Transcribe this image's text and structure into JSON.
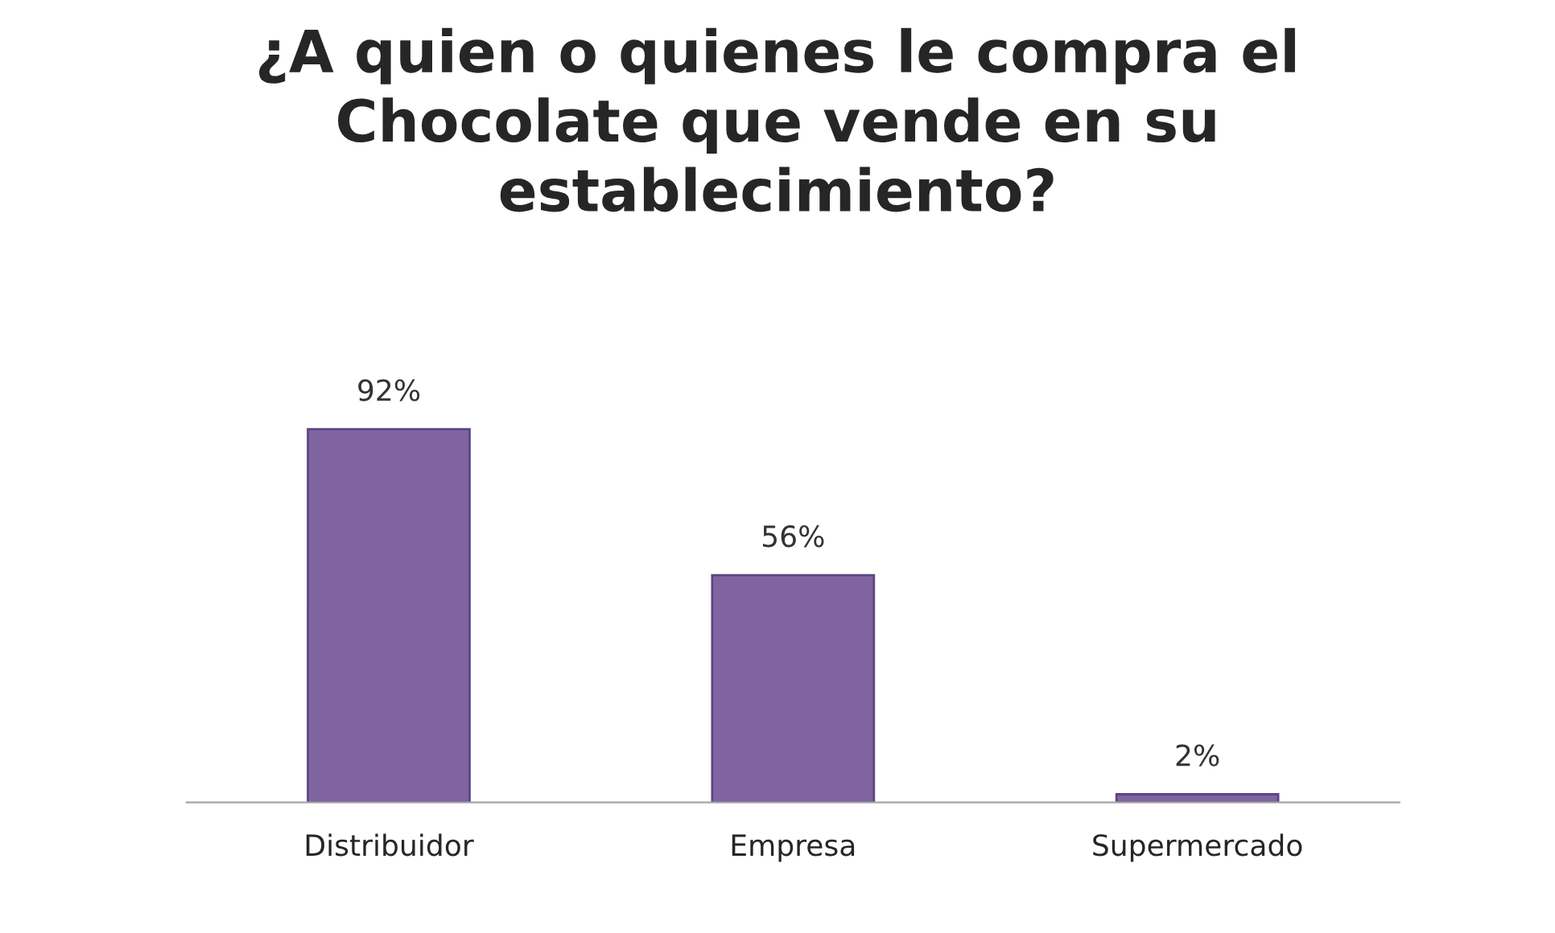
{
  "chart_data": {
    "type": "bar",
    "title": "¿A quien o quienes le compra el\nChocolate que vende en su\nestablecimiento?",
    "categories": [
      "Distribuidor",
      "Empresa",
      "Supermercado"
    ],
    "values": [
      92,
      56,
      2
    ],
    "value_labels": [
      "92%",
      "56%",
      "2%"
    ],
    "color": "#8064a2",
    "tick_labels": "x",
    "grid": false,
    "legend": false
  }
}
